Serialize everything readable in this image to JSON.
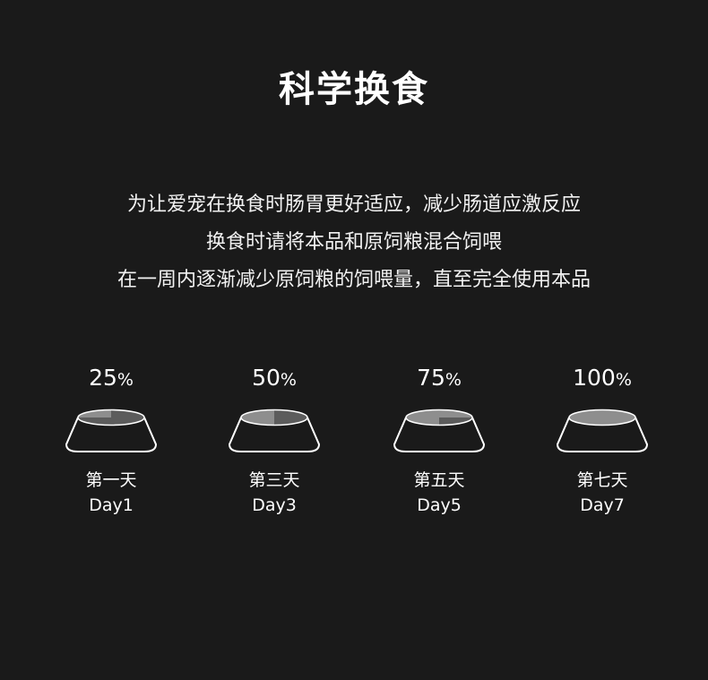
{
  "title": "科学换食",
  "description": {
    "line1": "为让爱宠在换食时肠胃更好适应，减少肠道应激反应",
    "line2": "换食时请将本品和原饲粮混合饲喂",
    "line3": "在一周内逐渐减少原饲粮的饲喂量，直至完全使用本品"
  },
  "bowls": [
    {
      "percent_number": "25",
      "percent_sign": "%",
      "fraction": 0.25,
      "day_cn": "第一天",
      "day_en": "Day1"
    },
    {
      "percent_number": "50",
      "percent_sign": "%",
      "fraction": 0.5,
      "day_cn": "第三天",
      "day_en": "Day3"
    },
    {
      "percent_number": "75",
      "percent_sign": "%",
      "fraction": 0.75,
      "day_cn": "第五天",
      "day_en": "Day5"
    },
    {
      "percent_number": "100",
      "percent_sign": "%",
      "fraction": 1.0,
      "day_cn": "第七天",
      "day_en": "Day7"
    }
  ],
  "colors": {
    "background": "#1a1a1a",
    "text": "#ffffff",
    "food_new": "#8e8e8e",
    "food_old": "#5c5c5c",
    "bowl_outline": "#ffffff"
  }
}
